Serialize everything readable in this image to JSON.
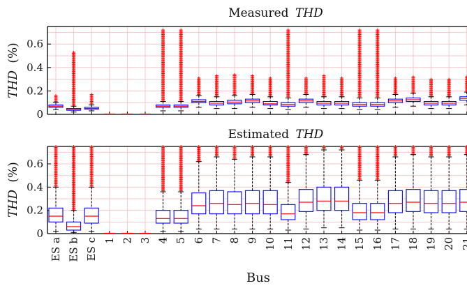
{
  "chart_data": [
    {
      "type": "box",
      "title_prefix": "Measured",
      "title_italic": "THD",
      "ylabel_italic": "THD",
      "ylabel_unit": "(%)",
      "ylim": [
        0,
        0.75
      ],
      "yticks": [
        "0",
        "0.2",
        "0.4",
        "0.6"
      ],
      "grid": true,
      "categories": [
        "ES a",
        "ES b",
        "ES c",
        "1",
        "2",
        "3",
        "4",
        "5",
        "6",
        "7",
        "8",
        "9",
        "10",
        "11",
        "12",
        "13",
        "14",
        "15",
        "16",
        "17",
        "18",
        "19",
        "20",
        "21"
      ],
      "boxes": [
        {
          "q1": 0.06,
          "median": 0.07,
          "q3": 0.08,
          "lo": 0.04,
          "hi": 0.1,
          "outlier_max": 0.16
        },
        {
          "q1": 0.035,
          "median": 0.04,
          "q3": 0.05,
          "lo": 0.02,
          "hi": 0.07,
          "outlier_max": 0.53
        },
        {
          "q1": 0.045,
          "median": 0.05,
          "q3": 0.06,
          "lo": 0.03,
          "hi": 0.08,
          "outlier_max": 0.17
        },
        {
          "q1": 0,
          "median": 0,
          "q3": 0,
          "lo": 0,
          "hi": 0,
          "outlier_max": 0
        },
        {
          "q1": 0,
          "median": 0,
          "q3": 0,
          "lo": 0,
          "hi": 0,
          "outlier_max": 0
        },
        {
          "q1": 0,
          "median": 0,
          "q3": 0,
          "lo": 0,
          "hi": 0,
          "outlier_max": 0
        },
        {
          "q1": 0.06,
          "median": 0.07,
          "q3": 0.08,
          "lo": 0.03,
          "hi": 0.11,
          "outlier_max": 0.72
        },
        {
          "q1": 0.06,
          "median": 0.07,
          "q3": 0.08,
          "lo": 0.03,
          "hi": 0.11,
          "outlier_max": 0.72
        },
        {
          "q1": 0.1,
          "median": 0.11,
          "q3": 0.125,
          "lo": 0.06,
          "hi": 0.16,
          "outlier_max": 0.31
        },
        {
          "q1": 0.08,
          "median": 0.095,
          "q3": 0.11,
          "lo": 0.05,
          "hi": 0.15,
          "outlier_max": 0.33
        },
        {
          "q1": 0.09,
          "median": 0.105,
          "q3": 0.12,
          "lo": 0.05,
          "hi": 0.16,
          "outlier_max": 0.34
        },
        {
          "q1": 0.1,
          "median": 0.115,
          "q3": 0.13,
          "lo": 0.06,
          "hi": 0.17,
          "outlier_max": 0.33
        },
        {
          "q1": 0.08,
          "median": 0.09,
          "q3": 0.11,
          "lo": 0.05,
          "hi": 0.15,
          "outlier_max": 0.31
        },
        {
          "q1": 0.07,
          "median": 0.085,
          "q3": 0.1,
          "lo": 0.04,
          "hi": 0.14,
          "outlier_max": 0.72
        },
        {
          "q1": 0.1,
          "median": 0.115,
          "q3": 0.13,
          "lo": 0.06,
          "hi": 0.17,
          "outlier_max": 0.31
        },
        {
          "q1": 0.08,
          "median": 0.095,
          "q3": 0.11,
          "lo": 0.05,
          "hi": 0.15,
          "outlier_max": 0.33
        },
        {
          "q1": 0.08,
          "median": 0.095,
          "q3": 0.11,
          "lo": 0.05,
          "hi": 0.15,
          "outlier_max": 0.31
        },
        {
          "q1": 0.07,
          "median": 0.085,
          "q3": 0.1,
          "lo": 0.04,
          "hi": 0.14,
          "outlier_max": 0.72
        },
        {
          "q1": 0.07,
          "median": 0.085,
          "q3": 0.1,
          "lo": 0.04,
          "hi": 0.14,
          "outlier_max": 0.72
        },
        {
          "q1": 0.1,
          "median": 0.115,
          "q3": 0.13,
          "lo": 0.06,
          "hi": 0.17,
          "outlier_max": 0.31
        },
        {
          "q1": 0.11,
          "median": 0.125,
          "q3": 0.14,
          "lo": 0.07,
          "hi": 0.18,
          "outlier_max": 0.32
        },
        {
          "q1": 0.08,
          "median": 0.095,
          "q3": 0.11,
          "lo": 0.05,
          "hi": 0.15,
          "outlier_max": 0.3
        },
        {
          "q1": 0.08,
          "median": 0.095,
          "q3": 0.11,
          "lo": 0.05,
          "hi": 0.15,
          "outlier_max": 0.3
        },
        {
          "q1": 0.12,
          "median": 0.135,
          "q3": 0.15,
          "lo": 0.08,
          "hi": 0.19,
          "outlier_max": 0.32
        }
      ]
    },
    {
      "type": "box",
      "title_prefix": "Estimated",
      "title_italic": "THD",
      "ylabel_italic": "THD",
      "ylabel_unit": "(%)",
      "ylim": [
        0,
        0.75
      ],
      "yticks": [
        "0",
        "0.2",
        "0.4",
        "0.6"
      ],
      "grid": true,
      "xlabel": "Bus",
      "categories": [
        "ES a",
        "ES b",
        "ES c",
        "1",
        "2",
        "3",
        "4",
        "5",
        "6",
        "7",
        "8",
        "9",
        "10",
        "11",
        "12",
        "13",
        "14",
        "15",
        "16",
        "17",
        "18",
        "19",
        "20",
        "21"
      ],
      "boxes": [
        {
          "q1": 0.1,
          "median": 0.15,
          "q3": 0.22,
          "lo": 0.02,
          "hi": 0.4,
          "outlier_max": 0.75
        },
        {
          "q1": 0.03,
          "median": 0.06,
          "q3": 0.1,
          "lo": 0.01,
          "hi": 0.2,
          "outlier_max": 0.75
        },
        {
          "q1": 0.09,
          "median": 0.15,
          "q3": 0.22,
          "lo": 0.02,
          "hi": 0.4,
          "outlier_max": 0.75
        },
        {
          "q1": 0,
          "median": 0,
          "q3": 0,
          "lo": 0,
          "hi": 0,
          "outlier_max": 0
        },
        {
          "q1": 0,
          "median": 0,
          "q3": 0,
          "lo": 0,
          "hi": 0,
          "outlier_max": 0
        },
        {
          "q1": 0,
          "median": 0,
          "q3": 0,
          "lo": 0,
          "hi": 0,
          "outlier_max": 0
        },
        {
          "q1": 0.09,
          "median": 0.13,
          "q3": 0.2,
          "lo": 0.02,
          "hi": 0.36,
          "outlier_max": 0.75
        },
        {
          "q1": 0.09,
          "median": 0.13,
          "q3": 0.2,
          "lo": 0.02,
          "hi": 0.36,
          "outlier_max": 0.75
        },
        {
          "q1": 0.17,
          "median": 0.24,
          "q3": 0.35,
          "lo": 0.04,
          "hi": 0.62,
          "outlier_max": 0.75
        },
        {
          "q1": 0.17,
          "median": 0.26,
          "q3": 0.37,
          "lo": 0.04,
          "hi": 0.66,
          "outlier_max": 0.75
        },
        {
          "q1": 0.17,
          "median": 0.25,
          "q3": 0.36,
          "lo": 0.04,
          "hi": 0.64,
          "outlier_max": 0.75
        },
        {
          "q1": 0.17,
          "median": 0.26,
          "q3": 0.37,
          "lo": 0.04,
          "hi": 0.66,
          "outlier_max": 0.75
        },
        {
          "q1": 0.17,
          "median": 0.25,
          "q3": 0.37,
          "lo": 0.04,
          "hi": 0.66,
          "outlier_max": 0.75
        },
        {
          "q1": 0.12,
          "median": 0.17,
          "q3": 0.25,
          "lo": 0.03,
          "hi": 0.44,
          "outlier_max": 0.75
        },
        {
          "q1": 0.19,
          "median": 0.27,
          "q3": 0.38,
          "lo": 0.04,
          "hi": 0.68,
          "outlier_max": 0.75
        },
        {
          "q1": 0.2,
          "median": 0.28,
          "q3": 0.4,
          "lo": 0.05,
          "hi": 0.72,
          "outlier_max": 0.75
        },
        {
          "q1": 0.2,
          "median": 0.28,
          "q3": 0.4,
          "lo": 0.05,
          "hi": 0.72,
          "outlier_max": 0.75
        },
        {
          "q1": 0.12,
          "median": 0.18,
          "q3": 0.26,
          "lo": 0.03,
          "hi": 0.46,
          "outlier_max": 0.75
        },
        {
          "q1": 0.12,
          "median": 0.18,
          "q3": 0.26,
          "lo": 0.03,
          "hi": 0.46,
          "outlier_max": 0.75
        },
        {
          "q1": 0.18,
          "median": 0.26,
          "q3": 0.37,
          "lo": 0.04,
          "hi": 0.66,
          "outlier_max": 0.75
        },
        {
          "q1": 0.19,
          "median": 0.27,
          "q3": 0.38,
          "lo": 0.04,
          "hi": 0.68,
          "outlier_max": 0.75
        },
        {
          "q1": 0.18,
          "median": 0.26,
          "q3": 0.37,
          "lo": 0.04,
          "hi": 0.66,
          "outlier_max": 0.75
        },
        {
          "q1": 0.18,
          "median": 0.26,
          "q3": 0.37,
          "lo": 0.04,
          "hi": 0.66,
          "outlier_max": 0.75
        },
        {
          "q1": 0.19,
          "median": 0.27,
          "q3": 0.38,
          "lo": 0.04,
          "hi": 0.68,
          "outlier_max": 0.75
        }
      ]
    }
  ],
  "colors": {
    "box": "#0000ff",
    "median": "#ff0000",
    "outlier": "#ff0000",
    "whisker": "#000000",
    "grid": "#f2c9cf"
  }
}
